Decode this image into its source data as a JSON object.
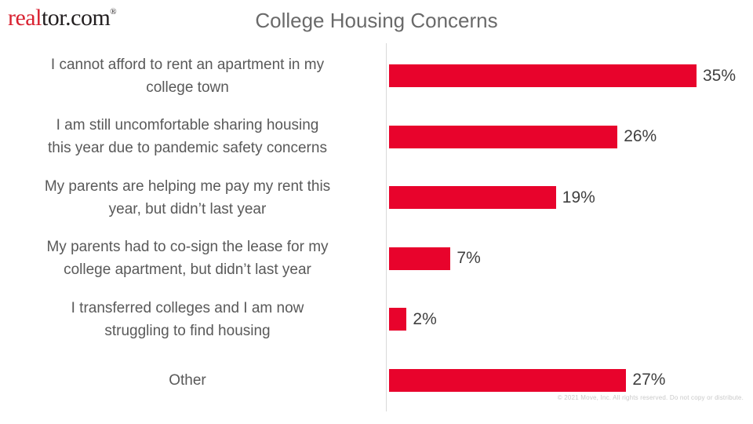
{
  "brand": {
    "logo_real": "real",
    "logo_rest": "tor.com",
    "logo_reg": "®"
  },
  "header": {
    "title": "College Housing Concerns"
  },
  "chart_data": {
    "type": "bar",
    "orientation": "horizontal",
    "title": "College Housing Concerns",
    "xlabel": "",
    "ylabel": "",
    "xlim": [
      0,
      40
    ],
    "grid": false,
    "legend": false,
    "bar_color": "#e8032c",
    "category_label_color": "#595959",
    "value_label_color": "#3f3f3f",
    "axis_line_color": "#d9d9d9",
    "categories": [
      "I cannot afford to rent an apartment in my\ncollege town",
      "I am still uncomfortable sharing housing\nthis year due to pandemic safety concerns",
      "My parents are helping me pay my rent this\nyear, but didn’t last year",
      "My parents had to co-sign the lease for my\ncollege apartment, but didn’t last year",
      "I transferred colleges and I am now\nstruggling to find housing",
      "Other"
    ],
    "values": [
      35,
      26,
      19,
      7,
      2,
      27
    ],
    "value_labels": [
      "35%",
      "26%",
      "19%",
      "7%",
      "2%",
      "27%"
    ]
  },
  "footer": {
    "copyright": "© 2021 Move, Inc. All rights reserved. Do not copy or distribute."
  }
}
